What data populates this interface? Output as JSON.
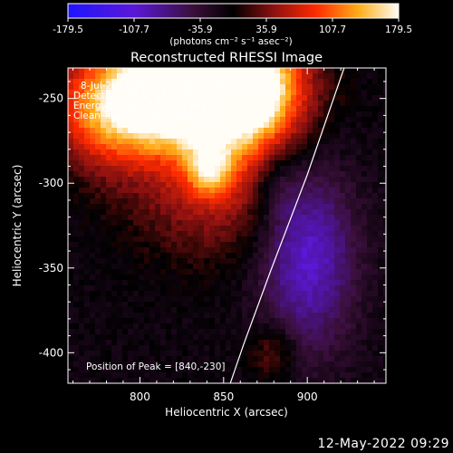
{
  "chart_data": {
    "type": "heatmap",
    "title": "Reconstructed RHESSI Image",
    "xlabel": "Heliocentric X (arcsec)",
    "ylabel": "Heliocentric Y (arcsec)",
    "xlim": [
      757,
      947
    ],
    "ylim": [
      -418,
      -232
    ],
    "x_ticks": [
      "800",
      "850",
      "900"
    ],
    "x_tick_values": [
      800,
      850,
      900
    ],
    "y_ticks": [
      "-250",
      "-300",
      "-350",
      "-400"
    ],
    "y_tick_values": [
      -250,
      -300,
      -350,
      -400
    ],
    "colorbar": {
      "ticks": [
        "-179.5",
        "-107.7",
        "-35.9",
        "35.9",
        "107.7",
        "179.5"
      ],
      "tick_values": [
        -179.5,
        -107.7,
        -35.9,
        35.9,
        107.7,
        179.5
      ],
      "range": [
        -179.5,
        179.5
      ],
      "units": "(photons cm⁻² s⁻¹ asec⁻²)"
    },
    "annotations": [
      "8-Jul-2012 04:20:28.000 to 04:24:28.000",
      "Detectors: 3F 5F 6F 7F 8F, Att 1",
      "Energy Range: 3.0 - 6.0 keV",
      "Clean    Total counts: 1.46E+05"
    ],
    "peak_label": "Position of Peak = [840,-230]",
    "peak": [
      840,
      -230
    ],
    "limb_curve": [
      [
        922,
        -232
      ],
      [
        900,
        -295
      ],
      [
        878,
        -352
      ],
      [
        862,
        -395
      ],
      [
        854,
        -418
      ]
    ],
    "sources": [
      {
        "x": 815,
        "y": -248,
        "sx": 40,
        "sy": 22,
        "amp": 190
      },
      {
        "x": 845,
        "y": -238,
        "sx": 30,
        "sy": 22,
        "amp": 200
      },
      {
        "x": 842,
        "y": -292,
        "sx": 10,
        "sy": 11,
        "amp": 95
      },
      {
        "x": 845,
        "y": -300,
        "sx": 38,
        "sy": 30,
        "amp": 70
      },
      {
        "x": 780,
        "y": -268,
        "sx": 20,
        "sy": 20,
        "amp": 55
      },
      {
        "x": 870,
        "y": -250,
        "sx": 20,
        "sy": 25,
        "amp": 70
      },
      {
        "x": 880,
        "y": -400,
        "sx": 10,
        "sy": 12,
        "amp": 50
      },
      {
        "x": 900,
        "y": -340,
        "sx": 20,
        "sy": 40,
        "amp": -100
      },
      {
        "x": 882,
        "y": -300,
        "sx": 10,
        "sy": 15,
        "amp": -30
      }
    ],
    "background_level": -10
  },
  "footer": {
    "date_stamp": "12-May-2022 09:29"
  }
}
